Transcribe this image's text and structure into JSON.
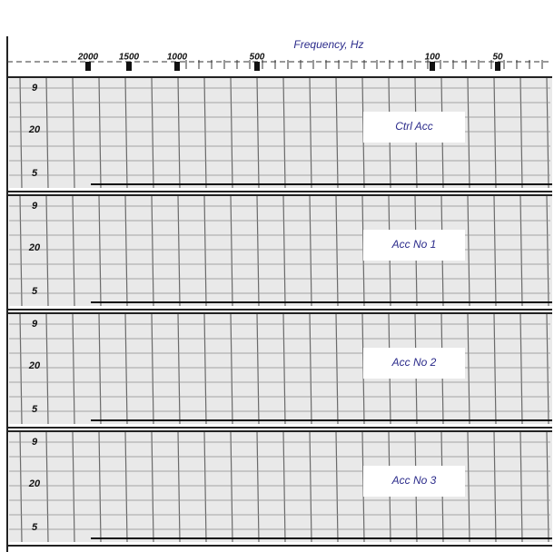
{
  "header": {
    "title": "Frequency, Hz",
    "ticks": [
      "2000",
      "1500",
      "1000",
      "500",
      "100",
      "50"
    ]
  },
  "panels": [
    {
      "label": "Ctrl Acc",
      "yticks": [
        "9",
        "20",
        "5"
      ]
    },
    {
      "label": "Acc No 1",
      "yticks": [
        "9",
        "20",
        "5"
      ]
    },
    {
      "label": "Acc No 2",
      "yticks": [
        "9",
        "20",
        "5"
      ]
    },
    {
      "label": "Acc No 3",
      "yticks": [
        "9",
        "20",
        "5"
      ]
    }
  ]
}
